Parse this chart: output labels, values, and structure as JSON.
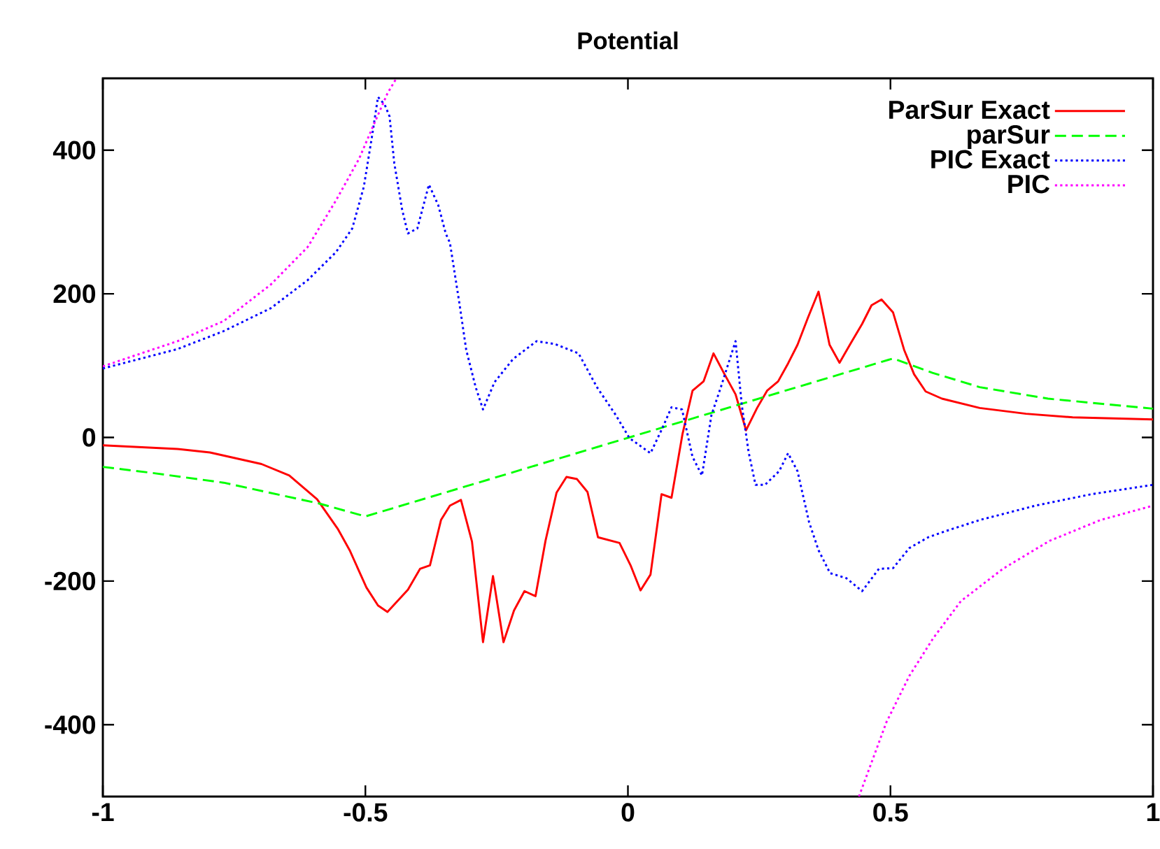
{
  "chart_data": {
    "type": "line",
    "title": "Potential",
    "xlim": [
      -1,
      1
    ],
    "ylim": [
      -500,
      500
    ],
    "xticks": [
      -1,
      -0.5,
      0,
      0.5,
      1
    ],
    "yticks": [
      -400,
      -200,
      0,
      200,
      400
    ],
    "grid": false,
    "legend": "top right",
    "marker": "none",
    "series": [
      {
        "name": "ParSur Exact",
        "color": "#ff0000",
        "line_style": "solid",
        "x": [
          -1,
          -0.858,
          -0.796,
          -0.698,
          -0.645,
          -0.592,
          -0.552,
          -0.53,
          -0.498,
          -0.476,
          -0.458,
          -0.419,
          -0.396,
          -0.377,
          -0.356,
          -0.339,
          -0.318,
          -0.297,
          -0.276,
          -0.257,
          -0.237,
          -0.217,
          -0.197,
          -0.176,
          -0.157,
          -0.136,
          -0.117,
          -0.097,
          -0.077,
          -0.057,
          -0.016,
          0.005,
          0.024,
          0.043,
          0.064,
          0.083,
          0.104,
          0.123,
          0.144,
          0.163,
          0.184,
          0.205,
          0.225,
          0.246,
          0.265,
          0.286,
          0.305,
          0.323,
          0.343,
          0.363,
          0.384,
          0.403,
          0.425,
          0.446,
          0.464,
          0.483,
          0.505,
          0.526,
          0.545,
          0.567,
          0.598,
          0.67,
          0.758,
          0.847,
          1
        ],
        "values": [
          -11,
          -16,
          -21,
          -37,
          -53,
          -86,
          -128,
          -157,
          -209,
          -234,
          -243,
          -212,
          -183,
          -178,
          -115,
          -95,
          -87,
          -145,
          -285,
          -193,
          -285,
          -241,
          -214,
          -221,
          -144,
          -77,
          -55,
          -58,
          -76,
          -139,
          -147,
          -178,
          -213,
          -191,
          -79,
          -84,
          5,
          65,
          78,
          117,
          88,
          60,
          10,
          41,
          65,
          78,
          103,
          129,
          167,
          203,
          129,
          104,
          132,
          158,
          184,
          192,
          174,
          122,
          88,
          64,
          54,
          41,
          33,
          28,
          25
        ]
      },
      {
        "name": "parSur",
        "color": "#00ff00",
        "line_style": "dashed",
        "x": [
          -1,
          -0.9,
          -0.77,
          -0.588,
          -0.5,
          0.505,
          0.58,
          0.67,
          0.8,
          1
        ],
        "values": [
          -41,
          -50,
          -63,
          -92,
          -110,
          110,
          90,
          70,
          54,
          40
        ]
      },
      {
        "name": "PIC Exact",
        "color": "#0000ff",
        "line_style": "dotted",
        "x": [
          -1,
          -0.858,
          -0.77,
          -0.68,
          -0.61,
          -0.556,
          -0.525,
          -0.503,
          -0.487,
          -0.476,
          -0.463,
          -0.454,
          -0.445,
          -0.43,
          -0.419,
          -0.401,
          -0.379,
          -0.361,
          -0.347,
          -0.339,
          -0.321,
          -0.308,
          -0.29,
          -0.276,
          -0.254,
          -0.219,
          -0.174,
          -0.139,
          -0.094,
          -0.059,
          -0.023,
          0.003,
          0.043,
          0.065,
          0.083,
          0.103,
          0.123,
          0.141,
          0.159,
          0.177,
          0.194,
          0.205,
          0.217,
          0.23,
          0.243,
          0.261,
          0.288,
          0.305,
          0.323,
          0.345,
          0.363,
          0.385,
          0.416,
          0.446,
          0.478,
          0.505,
          0.536,
          0.572,
          0.607,
          0.67,
          0.776,
          0.883,
          1
        ],
        "values": [
          96,
          123,
          148,
          180,
          219,
          258,
          291,
          349,
          421,
          474,
          463,
          447,
          382,
          317,
          284,
          291,
          352,
          323,
          284,
          271,
          187,
          122,
          70,
          39,
          77,
          109,
          134,
          130,
          117,
          70,
          31,
          -1,
          -22,
          12,
          42,
          39,
          -27,
          -53,
          31,
          70,
          109,
          134,
          44,
          -21,
          -66,
          -66,
          -47,
          -22,
          -47,
          -118,
          -157,
          -189,
          -196,
          -214,
          -183,
          -182,
          -154,
          -139,
          -130,
          -115,
          -95,
          -79,
          -66
        ]
      },
      {
        "name": "PIC",
        "color": "#ff00ff",
        "line_style": "dotted",
        "x": [
          -1,
          -0.858,
          -0.77,
          -0.68,
          -0.61,
          -0.556,
          -0.512,
          -0.485,
          -0.458,
          -0.441,
          0,
          0.44,
          0.492,
          0.536,
          0.581,
          0.634,
          0.714,
          0.803,
          0.9,
          1
        ],
        "values": [
          99,
          134,
          162,
          213,
          265,
          330,
          388,
          434,
          479,
          500,
          null,
          -500,
          -397,
          -332,
          -280,
          -228,
          -183,
          -144,
          -115,
          -95
        ]
      }
    ]
  }
}
